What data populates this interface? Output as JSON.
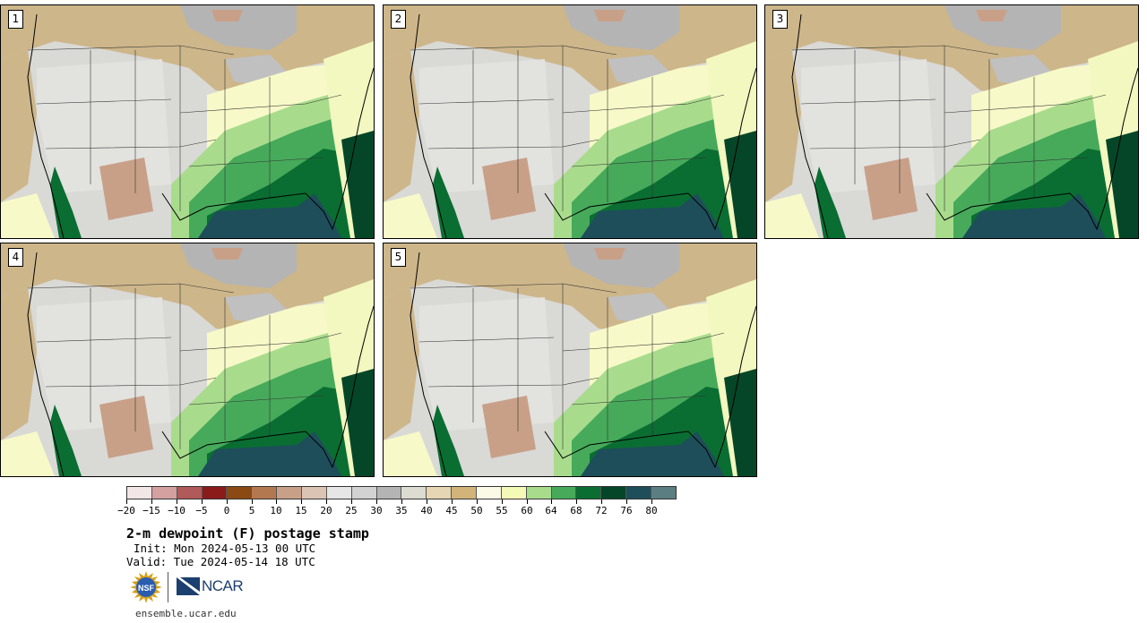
{
  "panels": [
    {
      "label": "1"
    },
    {
      "label": "2"
    },
    {
      "label": "3"
    },
    {
      "label": "4"
    },
    {
      "label": "5"
    }
  ],
  "colorbar": {
    "colors": [
      "#f2e6e6",
      "#d4a0a0",
      "#b05a5a",
      "#8b1a1a",
      "#8b4a13",
      "#b47850",
      "#c8a088",
      "#dcc4b4",
      "#e6e6e6",
      "#d2d2d2",
      "#b4b4b4",
      "#dcdcd2",
      "#e6d6b4",
      "#d2b47a",
      "#fafae6",
      "#f5f9b8",
      "#a8dc8c",
      "#46aa5a",
      "#0a6e32",
      "#064628",
      "#1e4e5a",
      "#5a7e82"
    ],
    "tick_labels": [
      "−20",
      "−15",
      "−10",
      "−5",
      "0",
      "5",
      "10",
      "15",
      "20",
      "25",
      "30",
      "35",
      "40",
      "45",
      "50",
      "55",
      "60",
      "64",
      "68",
      "72",
      "76",
      "80"
    ]
  },
  "title": "2-m dewpoint (F) postage stamp",
  "init": "Init: Mon 2024-05-13 00 UTC",
  "valid": "Valid: Tue 2024-05-14 18 UTC",
  "logo": {
    "nsf": "NSF",
    "ncar": "NCAR"
  },
  "site": "ensemble.ucar.edu"
}
